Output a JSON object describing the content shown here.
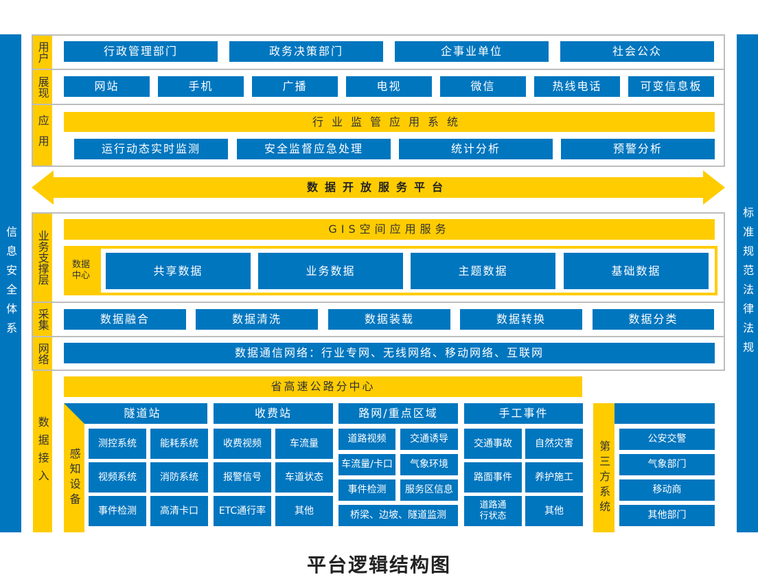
{
  "colors": {
    "blue": "#0076bf",
    "yellow": "#ffcc00",
    "border": "#bdbdbd"
  },
  "left_bar": "信息安全体系",
  "right_bar": "标准规范法律法规",
  "users": {
    "label": "用户",
    "items": [
      "行政管理部门",
      "政务决策部门",
      "企事业单位",
      "社会公众"
    ]
  },
  "display": {
    "label": "展现",
    "items": [
      "网站",
      "手机",
      "广播",
      "电视",
      "微信",
      "热线电话",
      "可变信息板"
    ]
  },
  "apps": {
    "label": "应用",
    "header": "行业监管应用系统",
    "items": [
      "运行动态实时监测",
      "安全监督应急处理",
      "统计分析",
      "预警分析"
    ]
  },
  "platform": "数据开放服务平台",
  "support": {
    "label": "业务支撑层",
    "gis": "GIS空间应用服务",
    "data_center": "数据中心",
    "items": [
      "共享数据",
      "业务数据",
      "主题数据",
      "基础数据"
    ]
  },
  "collect": {
    "label": "采集",
    "items": [
      "数据融合",
      "数据清洗",
      "数据装载",
      "数据转换",
      "数据分类"
    ]
  },
  "network": {
    "label": "网络",
    "text": "数据通信网络：行业专网、无线网络、移动网络、互联网"
  },
  "access": {
    "label": "数据接入",
    "center": "省高速公路分中心",
    "sensing": "感知设备",
    "tunnel": {
      "header": "隧道站",
      "items": [
        "测控系统",
        "能耗系统",
        "视频系统",
        "消防系统",
        "事件检测",
        "高清卡口"
      ]
    },
    "toll": {
      "header": "收费站",
      "items": [
        "收费视频",
        "车流量",
        "报警信号",
        "车道状态",
        "ETC通行率",
        "其他"
      ]
    },
    "road": {
      "header": "路网/重点区域",
      "items": [
        "道路视频",
        "交通诱导",
        "车流量/卡口",
        "气象环境",
        "事件检测",
        "服务区信息",
        "桥梁、边坡、隧道监测"
      ]
    },
    "manual": {
      "header": "手工事件",
      "items": [
        "交通事故",
        "自然灾害",
        "路面事件",
        "养护施工",
        "道路通行状态",
        "其他"
      ]
    },
    "third": {
      "label": "第三方系统",
      "items": [
        "公安交警",
        "气象部门",
        "移动商",
        "其他部门"
      ]
    }
  },
  "title": "平台逻辑结构图"
}
